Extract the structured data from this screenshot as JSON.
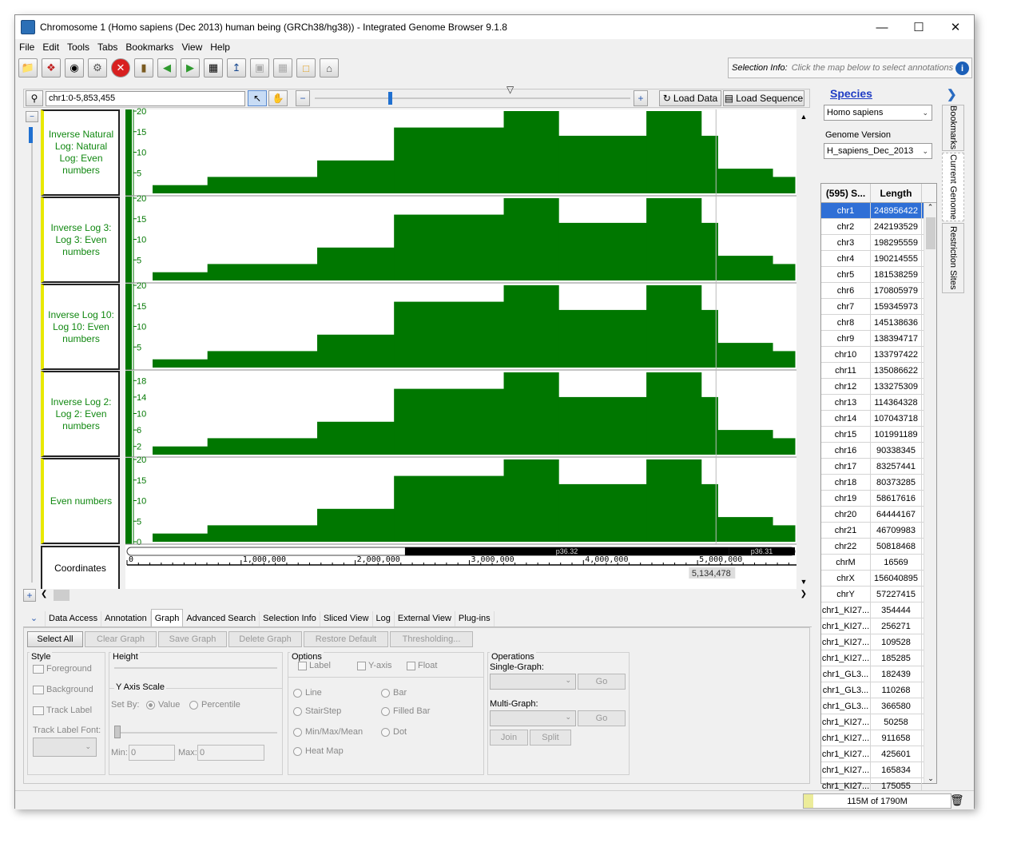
{
  "window": {
    "title": "Chromosome 1  (Homo sapiens (Dec 2013) human being (GRCh38/hg38)) - Integrated Genome Browser 9.1.8"
  },
  "menu": [
    "File",
    "Edit",
    "Tools",
    "Tabs",
    "Bookmarks",
    "View",
    "Help"
  ],
  "selection_info": {
    "label": "Selection Info:",
    "hint": "Click the map below to select annotations"
  },
  "location": {
    "value": "chr1:0-5,853,455",
    "load_data": "Load Data",
    "load_sequence": "Load Sequence"
  },
  "tracks": [
    {
      "label": "Inverse Natural Log: Natural Log: Even numbers",
      "ticks": [
        "20",
        "15",
        "10",
        "5"
      ],
      "ymax": 20
    },
    {
      "label": "Inverse Log 3: Log 3: Even numbers",
      "ticks": [
        "20",
        "15",
        "10",
        "5"
      ],
      "ymax": 20
    },
    {
      "label": "Inverse Log 10: Log 10: Even numbers",
      "ticks": [
        "20",
        "15",
        "10",
        "5"
      ],
      "ymax": 20
    },
    {
      "label": "Inverse Log 2: Log 2: Even numbers",
      "ticks": [
        "18",
        "14",
        "10",
        "6",
        "2"
      ],
      "ymax": 20
    },
    {
      "label": "Even numbers",
      "ticks": [
        "20",
        "15",
        "10",
        "5",
        "0"
      ],
      "ymax": 20
    }
  ],
  "graph_data": {
    "xmax": 5853455,
    "steps": [
      {
        "x0": 0,
        "x1": 500000,
        "y": 2
      },
      {
        "x0": 500000,
        "x1": 1500000,
        "y": 4
      },
      {
        "x0": 1500000,
        "x1": 2200000,
        "y": 8
      },
      {
        "x0": 2200000,
        "x1": 3200000,
        "y": 16
      },
      {
        "x0": 3200000,
        "x1": 3700000,
        "y": 20
      },
      {
        "x0": 3700000,
        "x1": 4500000,
        "y": 14
      },
      {
        "x0": 4500000,
        "x1": 5000000,
        "y": 20
      },
      {
        "x0": 5000000,
        "x1": 5150000,
        "y": 14
      },
      {
        "x0": 5150000,
        "x1": 5650000,
        "y": 6
      },
      {
        "x0": 5650000,
        "x1": 5853455,
        "y": 4
      }
    ]
  },
  "coordinates": {
    "label": "Coordinates",
    "ticks": [
      {
        "v": 0,
        "t": "0"
      },
      {
        "v": 1000000,
        "t": "1,000,000"
      },
      {
        "v": 2000000,
        "t": "2,000,000"
      },
      {
        "v": 3000000,
        "t": "3,000,000"
      },
      {
        "v": 4000000,
        "t": "4,000,000"
      },
      {
        "v": 5000000,
        "t": "5,000,000"
      }
    ],
    "cursor": {
      "v": 5134478,
      "t": "5,134,478"
    },
    "bands": [
      {
        "x0": 2300000,
        "x1": 5250000,
        "name": "p36.32"
      },
      {
        "x0": 5250000,
        "x1": 5853455,
        "name": "p36.31"
      }
    ]
  },
  "bottom_tabs": [
    "Data Access",
    "Annotation",
    "Graph",
    "Advanced Search",
    "Selection Info",
    "Sliced View",
    "Log",
    "External View",
    "Plug-ins"
  ],
  "active_tab": "Graph",
  "graph_panel": {
    "buttons": [
      "Select All",
      "Clear Graph",
      "Save Graph",
      "Delete Graph",
      "Restore Default",
      "Thresholding..."
    ],
    "style": {
      "title": "Style",
      "items": [
        "Foreground",
        "Background",
        "Track Label"
      ],
      "font_label": "Track Label Font:"
    },
    "height": {
      "title": "Height"
    },
    "yaxis": {
      "title": "Y Axis Scale",
      "set_by": "Set By:",
      "value": "Value",
      "percentile": "Percentile",
      "min_label": "Min:",
      "min": "0",
      "max_label": "Max:",
      "max": "0"
    },
    "options": {
      "title": "Options",
      "checks": [
        "Label",
        "Y-axis",
        "Float"
      ],
      "types": [
        "Line",
        "Bar",
        "StairStep",
        "Filled Bar",
        "Min/Max/Mean",
        "Dot",
        "Heat Map"
      ]
    },
    "operations": {
      "title": "Operations",
      "single": "Single-Graph:",
      "multi": "Multi-Graph:",
      "go": "Go",
      "join": "Join",
      "split": "Split"
    }
  },
  "sidebar": {
    "species_title": "Species",
    "species": "Homo sapiens",
    "genome_label": "Genome Version",
    "genome": "H_sapiens_Dec_2013",
    "col1": "(595) S...",
    "col2": "Length",
    "rows": [
      [
        "chr1",
        "248956422"
      ],
      [
        "chr2",
        "242193529"
      ],
      [
        "chr3",
        "198295559"
      ],
      [
        "chr4",
        "190214555"
      ],
      [
        "chr5",
        "181538259"
      ],
      [
        "chr6",
        "170805979"
      ],
      [
        "chr7",
        "159345973"
      ],
      [
        "chr8",
        "145138636"
      ],
      [
        "chr9",
        "138394717"
      ],
      [
        "chr10",
        "133797422"
      ],
      [
        "chr11",
        "135086622"
      ],
      [
        "chr12",
        "133275309"
      ],
      [
        "chr13",
        "114364328"
      ],
      [
        "chr14",
        "107043718"
      ],
      [
        "chr15",
        "101991189"
      ],
      [
        "chr16",
        "90338345"
      ],
      [
        "chr17",
        "83257441"
      ],
      [
        "chr18",
        "80373285"
      ],
      [
        "chr19",
        "58617616"
      ],
      [
        "chr20",
        "64444167"
      ],
      [
        "chr21",
        "46709983"
      ],
      [
        "chr22",
        "50818468"
      ],
      [
        "chrM",
        "16569"
      ],
      [
        "chrX",
        "156040895"
      ],
      [
        "chrY",
        "57227415"
      ],
      [
        "chr1_KI27...",
        "354444"
      ],
      [
        "chr1_KI27...",
        "256271"
      ],
      [
        "chr1_KI27...",
        "109528"
      ],
      [
        "chr1_KI27...",
        "185285"
      ],
      [
        "chr1_GL3...",
        "182439"
      ],
      [
        "chr1_GL3...",
        "110268"
      ],
      [
        "chr1_GL3...",
        "366580"
      ],
      [
        "chr1_KI27...",
        "50258"
      ],
      [
        "chr1_KI27...",
        "911658"
      ],
      [
        "chr1_KI27...",
        "425601"
      ],
      [
        "chr1_KI27...",
        "165834"
      ],
      [
        "chr1_KI27...",
        "175055"
      ]
    ]
  },
  "vertical_tabs": [
    "Bookmarks",
    "Current Genome",
    "Restriction Sites"
  ],
  "status": {
    "memory": "115M of 1790M",
    "memory_fraction": 0.064
  },
  "colors": {
    "graph": "#007700",
    "accent": "#2f6fd6",
    "label_text": "#118811",
    "label_edge": "#e8e800"
  }
}
